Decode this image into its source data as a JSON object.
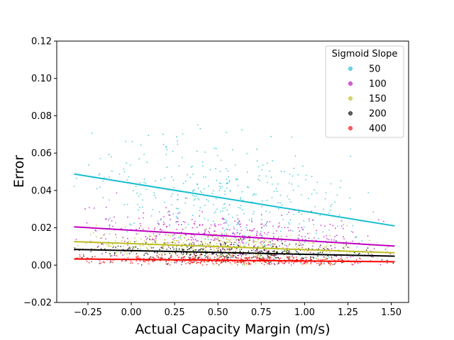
{
  "chart_data": {
    "type": "scatter",
    "title": "",
    "xlabel": "Actual Capacity Margin (m/s)",
    "ylabel": "Error",
    "xlim": [
      -0.43,
      1.6
    ],
    "ylim": [
      -0.02,
      0.12
    ],
    "x_ticks": [
      "−0.25",
      "0.00",
      "0.25",
      "0.50",
      "0.75",
      "1.00",
      "1.25",
      "1.50"
    ],
    "x_tick_values": [
      -0.25,
      0.0,
      0.25,
      0.5,
      0.75,
      1.0,
      1.25,
      1.5
    ],
    "y_ticks": [
      "−0.02",
      "0.00",
      "0.02",
      "0.04",
      "0.06",
      "0.08",
      "0.10",
      "0.12"
    ],
    "y_tick_values": [
      -0.02,
      0.0,
      0.02,
      0.04,
      0.06,
      0.08,
      0.1,
      0.12
    ],
    "grid": false,
    "legend": {
      "title": "Sigmoid Slope",
      "placement": "top-right"
    },
    "series": [
      {
        "name": "50",
        "color": "#17becf",
        "trend": {
          "x": [
            -0.33,
            1.52
          ],
          "y": [
            0.0488,
            0.021
          ]
        },
        "scatter": {
          "x_range": [
            -0.33,
            1.52
          ],
          "x_center": 0.55,
          "spread": 0.016,
          "max": 0.082
        }
      },
      {
        "name": "100",
        "color": "#bf00bf",
        "trend": {
          "x": [
            -0.33,
            1.52
          ],
          "y": [
            0.0205,
            0.0102
          ]
        },
        "scatter": {
          "x_range": [
            -0.33,
            1.52
          ],
          "x_center": 0.55,
          "spread": 0.0065,
          "max": 0.045
        }
      },
      {
        "name": "150",
        "color": "#bcbd22",
        "trend": {
          "x": [
            -0.33,
            1.52
          ],
          "y": [
            0.0126,
            0.0066
          ]
        },
        "scatter": {
          "x_range": [
            -0.33,
            1.52
          ],
          "x_center": 0.55,
          "spread": 0.004,
          "max": 0.03
        }
      },
      {
        "name": "200",
        "color": "#000000",
        "trend": {
          "x": [
            -0.33,
            1.52
          ],
          "y": [
            0.0084,
            0.0048
          ]
        },
        "scatter": {
          "x_range": [
            -0.33,
            1.52
          ],
          "x_center": 0.55,
          "spread": 0.003,
          "max": 0.02
        }
      },
      {
        "name": "400",
        "color": "#ff0000",
        "trend": {
          "x": [
            -0.33,
            1.52
          ],
          "y": [
            0.0033,
            0.0018
          ]
        },
        "scatter": {
          "x_range": [
            -0.33,
            1.52
          ],
          "x_center": 0.55,
          "spread": 0.0012,
          "max": 0.01
        }
      }
    ]
  }
}
